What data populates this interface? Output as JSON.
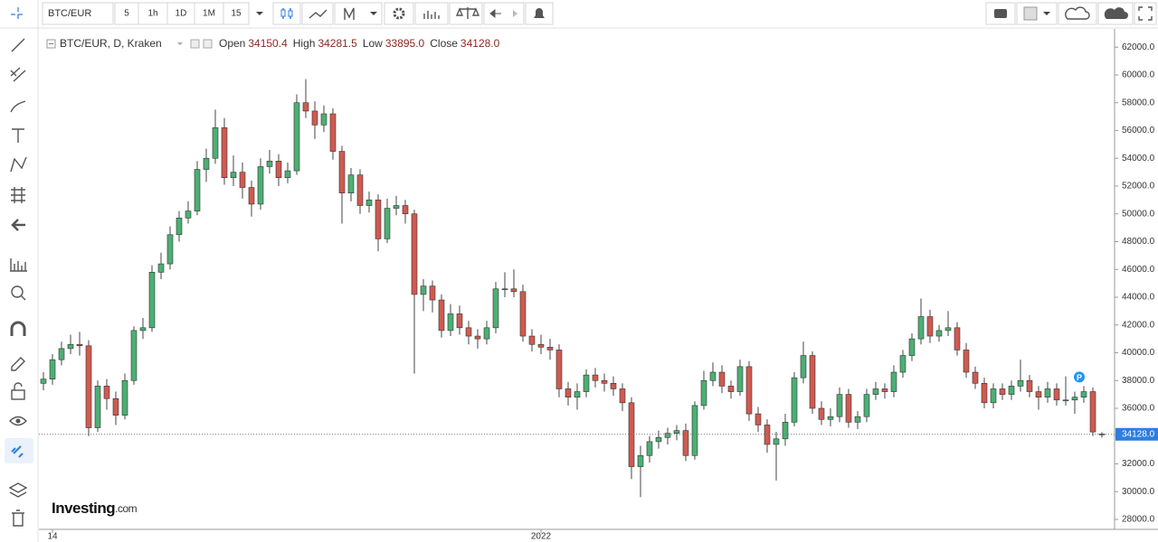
{
  "toolbar": {
    "symbol": "BTC/EUR",
    "intervals": [
      "5",
      "1h",
      "1D",
      "1M",
      "15"
    ]
  },
  "legend": {
    "title": "BTC/EUR, D, Kraken",
    "open_label": "Open",
    "open": "34150.4",
    "high_label": "High",
    "high": "34281.5",
    "low_label": "Low",
    "low": "33895.0",
    "close_label": "Close",
    "close": "34128.0"
  },
  "logo": {
    "brand": "Investing",
    "suffix": ".com"
  },
  "marker": "P",
  "chart_data": {
    "type": "candlestick",
    "up_color": "#4caf73",
    "down_color": "#d05a50",
    "ylim": [
      27350,
      63120
    ],
    "yticks": [
      {
        "value": 28000,
        "label": "28000.0"
      },
      {
        "value": 30000,
        "label": "30000.0"
      },
      {
        "value": 32000,
        "label": "32000.0"
      },
      {
        "value": 34000,
        "label": "34000.0"
      },
      {
        "value": 36000,
        "label": "36000.0"
      },
      {
        "value": 38000,
        "label": "38000.0"
      },
      {
        "value": 40000,
        "label": "40000.0"
      },
      {
        "value": 42000,
        "label": "42000.0"
      },
      {
        "value": 44000,
        "label": "44000.0"
      },
      {
        "value": 46000,
        "label": "46000.0"
      },
      {
        "value": 48000,
        "label": "48000.0"
      },
      {
        "value": 50000,
        "label": "50000.0"
      },
      {
        "value": 52000,
        "label": "52000.0"
      },
      {
        "value": 54000,
        "label": "54000.0"
      },
      {
        "value": 56000,
        "label": "56000.0"
      },
      {
        "value": 58000,
        "label": "58000.0"
      },
      {
        "value": 60000,
        "label": "60000.0"
      },
      {
        "value": 62000,
        "label": "62000.0"
      }
    ],
    "x_labels": [
      {
        "index": 1,
        "label": "14"
      },
      {
        "index": 55,
        "label": "2022"
      }
    ],
    "last_price": {
      "value": 34128,
      "label": "34128.0"
    },
    "candles": [
      [
        37800,
        38600,
        37300,
        38100
      ],
      [
        38100,
        39900,
        37700,
        39500
      ],
      [
        39500,
        40800,
        39100,
        40300
      ],
      [
        40300,
        41300,
        39900,
        40600
      ],
      [
        40600,
        41500,
        39800,
        40500
      ],
      [
        40500,
        40900,
        34000,
        34600
      ],
      [
        34600,
        38000,
        34300,
        37600
      ],
      [
        37600,
        38100,
        35900,
        36700
      ],
      [
        36700,
        37200,
        34800,
        35500
      ],
      [
        35500,
        38500,
        35200,
        38000
      ],
      [
        38000,
        41900,
        37700,
        41600
      ],
      [
        41600,
        42500,
        41000,
        41800
      ],
      [
        41800,
        46300,
        41500,
        45800
      ],
      [
        45800,
        47200,
        45300,
        46400
      ],
      [
        46400,
        49100,
        46000,
        48500
      ],
      [
        48500,
        50200,
        48000,
        49700
      ],
      [
        49700,
        50900,
        49300,
        50200
      ],
      [
        50200,
        53800,
        49900,
        53200
      ],
      [
        53200,
        54700,
        52300,
        54000
      ],
      [
        54000,
        57500,
        53600,
        56200
      ],
      [
        56200,
        56900,
        52100,
        52600
      ],
      [
        52600,
        54200,
        52000,
        53000
      ],
      [
        53000,
        53700,
        51100,
        51900
      ],
      [
        51900,
        52400,
        49800,
        50700
      ],
      [
        50700,
        54000,
        50300,
        53400
      ],
      [
        53400,
        54600,
        52900,
        53800
      ],
      [
        53800,
        54300,
        52000,
        52600
      ],
      [
        52600,
        53700,
        52200,
        53100
      ],
      [
        53100,
        58600,
        52800,
        58000
      ],
      [
        58000,
        59700,
        56900,
        57400
      ],
      [
        57400,
        58100,
        55400,
        56400
      ],
      [
        56400,
        57800,
        55900,
        57200
      ],
      [
        57200,
        57600,
        53900,
        54500
      ],
      [
        54500,
        54900,
        49300,
        51500
      ],
      [
        51500,
        53300,
        50900,
        52800
      ],
      [
        52800,
        53200,
        50000,
        50600
      ],
      [
        50600,
        51600,
        50100,
        51000
      ],
      [
        51000,
        51400,
        47300,
        48200
      ],
      [
        48200,
        51100,
        47900,
        50400
      ],
      [
        50400,
        51300,
        49900,
        50600
      ],
      [
        50600,
        51000,
        49300,
        50000
      ],
      [
        50000,
        50300,
        38500,
        44200
      ],
      [
        44200,
        45300,
        43000,
        44800
      ],
      [
        44800,
        45200,
        42900,
        43800
      ],
      [
        43800,
        44200,
        41100,
        41600
      ],
      [
        41600,
        43500,
        41200,
        42800
      ],
      [
        42800,
        43400,
        41300,
        41800
      ],
      [
        41800,
        42300,
        40600,
        41200
      ],
      [
        41200,
        41700,
        40300,
        41000
      ],
      [
        41000,
        42300,
        40600,
        41800
      ],
      [
        41800,
        45100,
        41400,
        44600
      ],
      [
        44600,
        45800,
        44000,
        44600
      ],
      [
        44600,
        46000,
        44000,
        44400
      ],
      [
        44400,
        44900,
        40800,
        41200
      ],
      [
        41200,
        41700,
        40100,
        40600
      ],
      [
        40600,
        41300,
        39900,
        40400
      ],
      [
        40400,
        41000,
        39500,
        40200
      ],
      [
        40200,
        40600,
        36800,
        37400
      ],
      [
        37400,
        37900,
        36200,
        36800
      ],
      [
        36800,
        37800,
        35900,
        37200
      ],
      [
        37200,
        38800,
        36800,
        38400
      ],
      [
        38400,
        38900,
        37500,
        38000
      ],
      [
        38000,
        38500,
        37200,
        37800
      ],
      [
        37800,
        38300,
        36900,
        37400
      ],
      [
        37400,
        37800,
        35800,
        36400
      ],
      [
        36400,
        36800,
        30900,
        31800
      ],
      [
        31800,
        33300,
        29600,
        32600
      ],
      [
        32600,
        34000,
        32100,
        33600
      ],
      [
        33600,
        34400,
        33100,
        33900
      ],
      [
        33900,
        34600,
        33400,
        34200
      ],
      [
        34200,
        34800,
        33700,
        34400
      ],
      [
        34400,
        34900,
        32200,
        32600
      ],
      [
        32600,
        36500,
        32300,
        36200
      ],
      [
        36200,
        38700,
        35900,
        38000
      ],
      [
        38000,
        39300,
        37600,
        38600
      ],
      [
        38600,
        39100,
        37100,
        37600
      ],
      [
        37600,
        38000,
        36700,
        37200
      ],
      [
        37200,
        39500,
        36900,
        39000
      ],
      [
        39000,
        39400,
        35100,
        35600
      ],
      [
        35600,
        36100,
        34300,
        34800
      ],
      [
        34800,
        35200,
        32800,
        33400
      ],
      [
        33400,
        34300,
        30800,
        33800
      ],
      [
        33800,
        35600,
        33300,
        35000
      ],
      [
        35000,
        38600,
        34700,
        38200
      ],
      [
        38200,
        40800,
        37800,
        39800
      ],
      [
        39800,
        40100,
        35600,
        36000
      ],
      [
        36000,
        36500,
        34800,
        35200
      ],
      [
        35200,
        36000,
        34700,
        35400
      ],
      [
        35400,
        37500,
        35000,
        37000
      ],
      [
        37000,
        37400,
        34600,
        35000
      ],
      [
        35000,
        35800,
        34500,
        35400
      ],
      [
        35400,
        37400,
        35000,
        37000
      ],
      [
        37000,
        37900,
        36600,
        37400
      ],
      [
        37400,
        37800,
        36700,
        37200
      ],
      [
        37200,
        39100,
        36800,
        38600
      ],
      [
        38600,
        40200,
        38200,
        39800
      ],
      [
        39800,
        41400,
        39400,
        41000
      ],
      [
        41000,
        43900,
        40600,
        42600
      ],
      [
        42600,
        43100,
        40700,
        41200
      ],
      [
        41200,
        42000,
        40800,
        41600
      ],
      [
        41600,
        43000,
        41200,
        41800
      ],
      [
        41800,
        42200,
        39800,
        40200
      ],
      [
        40200,
        40700,
        38200,
        38600
      ],
      [
        38600,
        39000,
        37400,
        37800
      ],
      [
        37800,
        38200,
        36000,
        36400
      ],
      [
        36400,
        37800,
        36000,
        37400
      ],
      [
        37400,
        37800,
        36600,
        37000
      ],
      [
        37000,
        38000,
        36600,
        37600
      ],
      [
        37600,
        39500,
        37200,
        38000
      ],
      [
        38000,
        38400,
        36800,
        37200
      ],
      [
        37200,
        37600,
        35900,
        36800
      ],
      [
        36800,
        37900,
        36400,
        37400
      ],
      [
        37400,
        37800,
        36200,
        36600
      ],
      [
        36600,
        38300,
        36200,
        36600
      ],
      [
        36600,
        37200,
        35600,
        36800
      ],
      [
        36800,
        37600,
        36400,
        37200
      ],
      [
        37200,
        37500,
        34000,
        34300
      ],
      [
        34150.4,
        34281.5,
        33895.0,
        34128.0
      ]
    ]
  }
}
